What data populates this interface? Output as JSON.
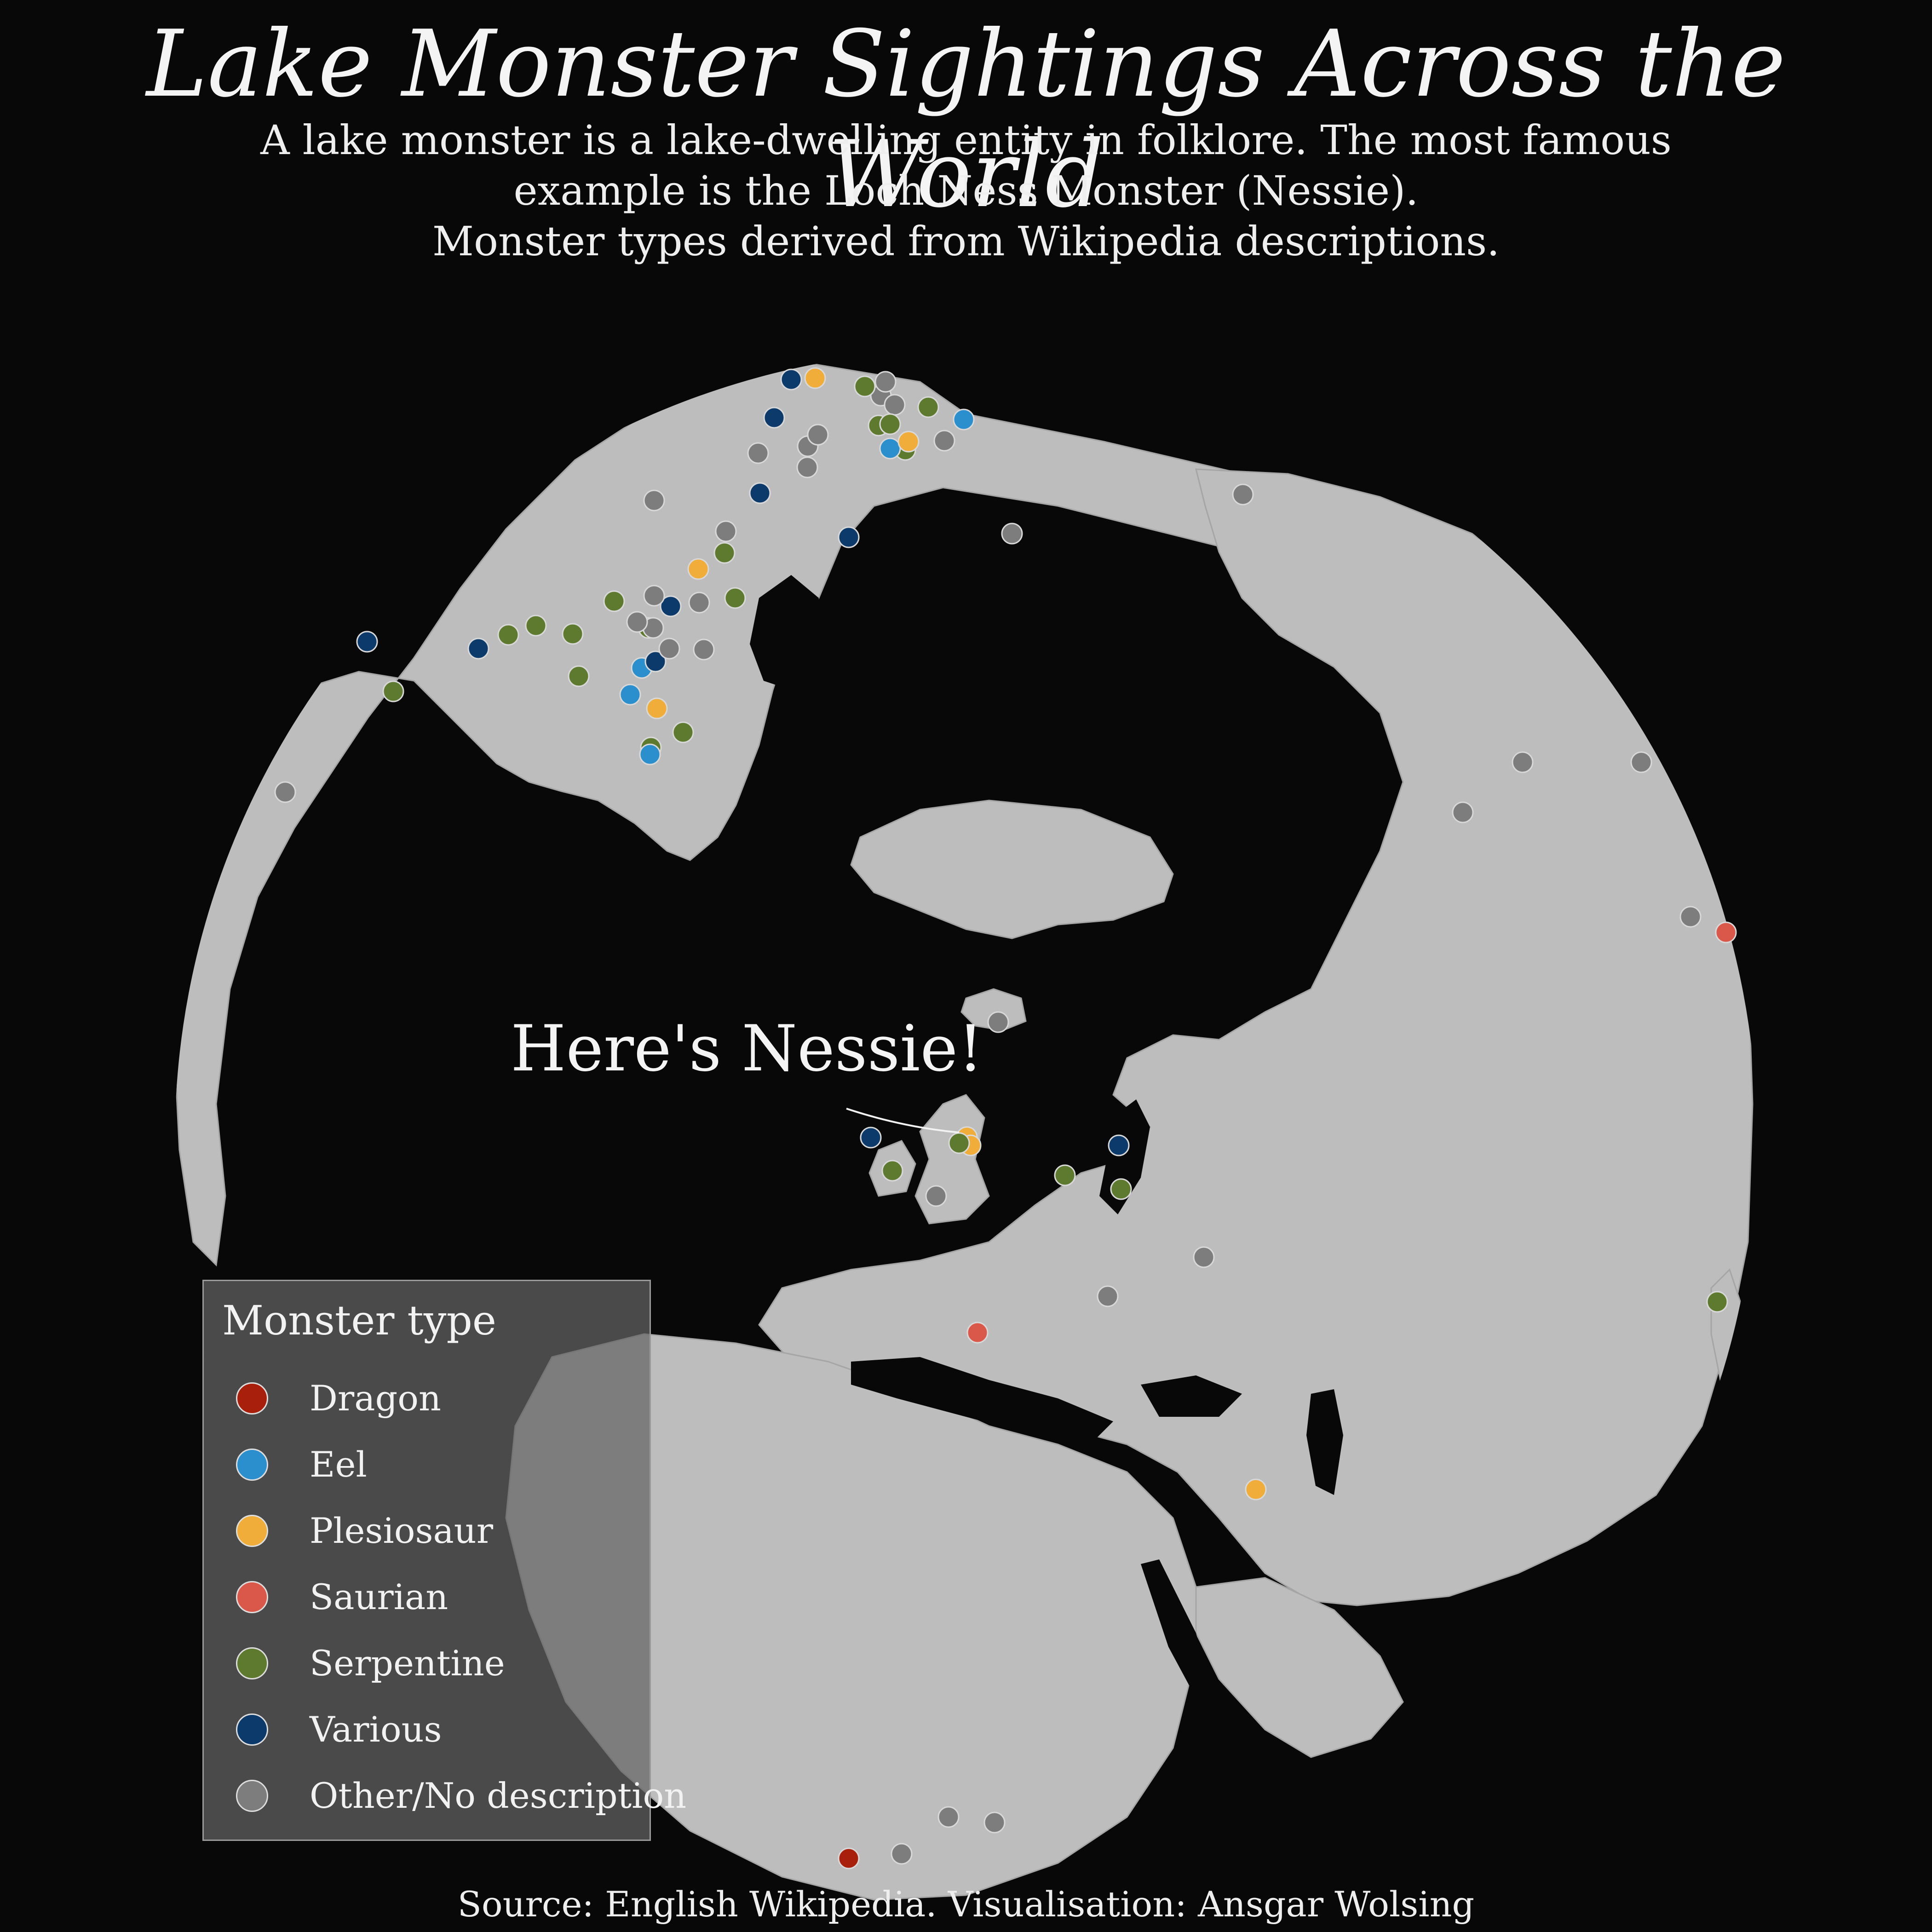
{
  "title": "Lake Monster Sightings Across the World",
  "subtitle": [
    "A lake monster is a lake-dwelling entity in folklore. The most famous",
    "example is the Loch Ness Monster (Nessie).",
    "Monster types derived from Wikipedia descriptions."
  ],
  "annotation": "Here's Nessie!",
  "source": "Source: English Wikipedia. Visualisation: Ansgar Wolsing",
  "colors": {
    "background": "#080808",
    "land": "#bdbdbd",
    "water": "#080808",
    "Dragon": "#a8200c",
    "Eel": "#2a8fcc",
    "Plesiosaur": "#f0ad3a",
    "Saurian": "#d9584a",
    "Serpentine": "#5e7a2e",
    "Various": "#0b3a6b",
    "Other": "#7d7d7d"
  },
  "legend": {
    "title": "Monster type",
    "items": [
      {
        "key": "Dragon",
        "label": "Dragon",
        "color": "#a8200c"
      },
      {
        "key": "Eel",
        "label": "Eel",
        "color": "#2a8fcc"
      },
      {
        "key": "Plesiosaur",
        "label": "Plesiosaur",
        "color": "#f0ad3a"
      },
      {
        "key": "Saurian",
        "label": "Saurian",
        "color": "#d9584a"
      },
      {
        "key": "Serpentine",
        "label": "Serpentine",
        "color": "#5e7a2e"
      },
      {
        "key": "Various",
        "label": "Various",
        "color": "#0b3a6b"
      },
      {
        "key": "Other",
        "label": "Other/No description",
        "color": "#7d7d7d"
      }
    ]
  },
  "map": {
    "projection": "orthographic",
    "center": "North Atlantic / Arctic",
    "features": [
      "North America",
      "Greenland",
      "Iceland",
      "Europe",
      "Africa",
      "Asia",
      "Arabian Peninsula",
      "Japan"
    ]
  },
  "sightings": [
    {
      "region": "Alaska",
      "type": "Various"
    },
    {
      "region": "Alaska",
      "type": "Serpentine"
    },
    {
      "region": "British Columbia",
      "type": "Various"
    },
    {
      "region": "Western Canada",
      "type": "Serpentine"
    },
    {
      "region": "Western Canada",
      "type": "Serpentine"
    },
    {
      "region": "Western Canada",
      "type": "Serpentine"
    },
    {
      "region": "Western Canada",
      "type": "Serpentine"
    },
    {
      "region": "Western Canada",
      "type": "Serpentine"
    },
    {
      "region": "Western Canada",
      "type": "Eel"
    },
    {
      "region": "Western Canada",
      "type": "Plesiosaur"
    },
    {
      "region": "Western Canada",
      "type": "Serpentine"
    },
    {
      "region": "Western Canada",
      "type": "Eel"
    },
    {
      "region": "Western Canada",
      "type": "Serpentine"
    },
    {
      "region": "Western Canada",
      "type": "Serpentine"
    },
    {
      "region": "Canada (central)",
      "type": "Eel"
    },
    {
      "region": "Canada (central)",
      "type": "Various"
    },
    {
      "region": "Canada (central)",
      "type": "Various"
    },
    {
      "region": "Canada (central)",
      "type": "Other"
    },
    {
      "region": "Canada (central)",
      "type": "Other"
    },
    {
      "region": "Canada (central)",
      "type": "Other"
    },
    {
      "region": "Canada (central)",
      "type": "Other"
    },
    {
      "region": "Canada (central)",
      "type": "Other"
    },
    {
      "region": "Canada (central)",
      "type": "Other"
    },
    {
      "region": "Canada (central)",
      "type": "Plesiosaur"
    },
    {
      "region": "Canada (central)",
      "type": "Serpentine"
    },
    {
      "region": "Canada (central)",
      "type": "Serpentine"
    },
    {
      "region": "Canada (central)",
      "type": "Other"
    },
    {
      "region": "Canada (central)",
      "type": "Other"
    },
    {
      "region": "Canada (central)",
      "type": "Various"
    },
    {
      "region": "Canada (central)",
      "type": "Other"
    },
    {
      "region": "Canada (central)",
      "type": "Other"
    },
    {
      "region": "Canada (central)",
      "type": "Various"
    },
    {
      "region": "Canada (central)",
      "type": "Various"
    },
    {
      "region": "Canada (east)",
      "type": "Other"
    },
    {
      "region": "Canada (east)",
      "type": "Other"
    },
    {
      "region": "Canada (east)",
      "type": "Other"
    },
    {
      "region": "Canada (east)",
      "type": "Serpentine"
    },
    {
      "region": "Canada (east)",
      "type": "Serpentine"
    },
    {
      "region": "Canada (east)",
      "type": "Serpentine"
    },
    {
      "region": "Canada (east)",
      "type": "Serpentine"
    },
    {
      "region": "Canada (east)",
      "type": "Serpentine"
    },
    {
      "region": "Canada (east)",
      "type": "Eel"
    },
    {
      "region": "Canada (east)",
      "type": "Plesiosaur"
    },
    {
      "region": "Canada (east)",
      "type": "Eel"
    },
    {
      "region": "Canada (east)",
      "type": "Other"
    },
    {
      "region": "Canada (east)",
      "type": "Other"
    },
    {
      "region": "Canada (east)",
      "type": "Various"
    },
    {
      "region": "Canada (east)",
      "type": "Various"
    },
    {
      "region": "Canada (east)",
      "type": "Plesiosaur"
    },
    {
      "region": "Canada (east)",
      "type": "Various"
    },
    {
      "region": "Canada (east)",
      "type": "Other"
    },
    {
      "region": "Canada (east)",
      "type": "Other"
    },
    {
      "region": "Canada (east)",
      "type": "Other"
    },
    {
      "region": "US Pacific",
      "type": "Other"
    },
    {
      "region": "Scotland",
      "type": "Plesiosaur"
    },
    {
      "region": "Scotland",
      "type": "Plesiosaur"
    },
    {
      "region": "Scotland",
      "type": "Serpentine"
    },
    {
      "region": "Ireland",
      "type": "Serpentine"
    },
    {
      "region": "Wales",
      "type": "Other"
    },
    {
      "region": "Iceland",
      "type": "Other"
    },
    {
      "region": "Norway",
      "type": "Serpentine"
    },
    {
      "region": "Sweden",
      "type": "Various"
    },
    {
      "region": "Sweden",
      "type": "Serpentine"
    },
    {
      "region": "Russia (west)",
      "type": "Other"
    },
    {
      "region": "Poland",
      "type": "Other"
    },
    {
      "region": "Alps",
      "type": "Saurian"
    },
    {
      "region": "Turkey (east)",
      "type": "Plesiosaur"
    },
    {
      "region": "Siberia",
      "type": "Various"
    },
    {
      "region": "Siberia",
      "type": "Other"
    },
    {
      "region": "Siberia",
      "type": "Other"
    },
    {
      "region": "Siberia",
      "type": "Other"
    },
    {
      "region": "East Asia",
      "type": "Other"
    },
    {
      "region": "East Asia",
      "type": "Saurian"
    },
    {
      "region": "Japan",
      "type": "Serpentine"
    },
    {
      "region": "Africa",
      "type": "Dragon"
    },
    {
      "region": "Africa",
      "type": "Other"
    },
    {
      "region": "Africa",
      "type": "Other"
    },
    {
      "region": "Africa",
      "type": "Other"
    }
  ]
}
